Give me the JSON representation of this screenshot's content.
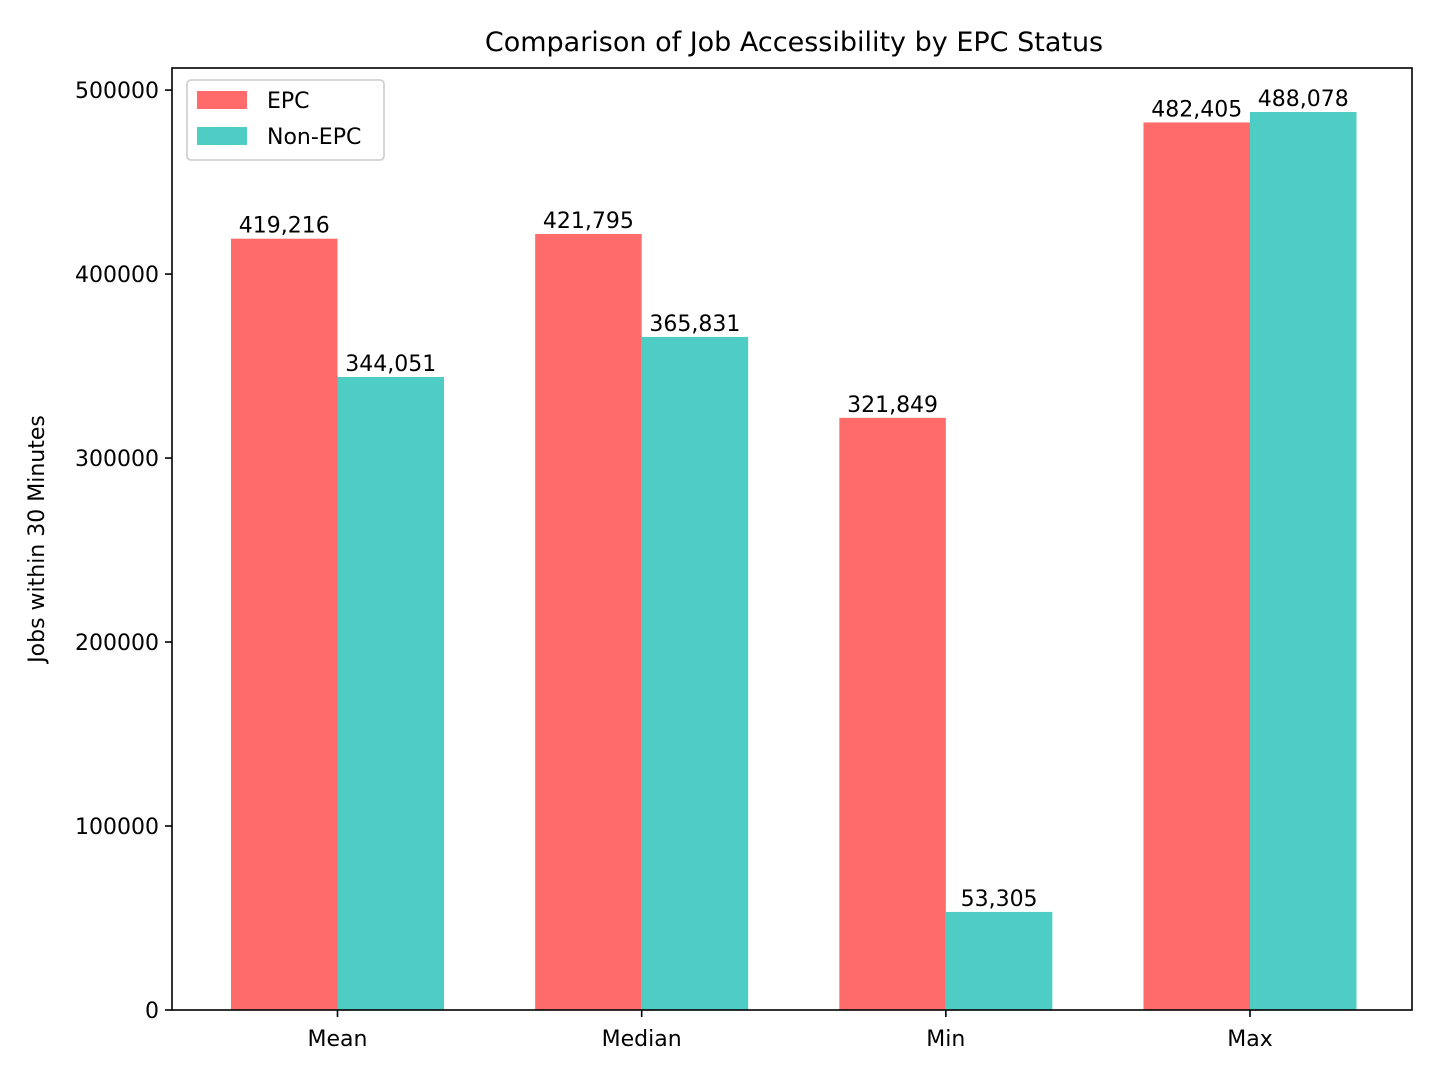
{
  "chart_data": {
    "type": "bar",
    "title": "Comparison of Job Accessibility by EPC Status",
    "xlabel": "",
    "ylabel": "Jobs within 30 Minutes",
    "categories": [
      "Mean",
      "Median",
      "Min",
      "Max"
    ],
    "series": [
      {
        "name": "EPC",
        "color": "#ff6b6b",
        "values": [
          419216,
          421795,
          321849,
          482405
        ],
        "labels": [
          "419,216",
          "421,795",
          "321,849",
          "482,405"
        ]
      },
      {
        "name": "Non-EPC",
        "color": "#4ecdc4",
        "values": [
          344051,
          365831,
          53305,
          488078
        ],
        "labels": [
          "344,051",
          "365,831",
          "53,305",
          "488,078"
        ]
      }
    ],
    "ylim": [
      0,
      512000
    ],
    "yticks": [
      0,
      100000,
      200000,
      300000,
      400000,
      500000
    ],
    "ytick_labels": [
      "0",
      "100000",
      "200000",
      "300000",
      "400000",
      "500000"
    ],
    "grid": false,
    "legend_position": "top-left"
  }
}
